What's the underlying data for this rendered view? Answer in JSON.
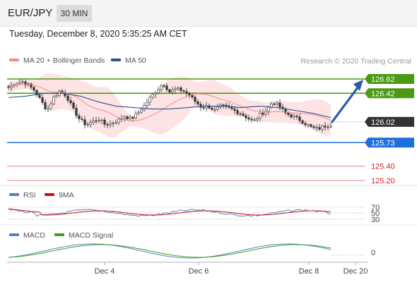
{
  "header": {
    "symbol": "EUR/JPY",
    "timeframe": "30 MIN"
  },
  "timestamp": "Tuesday, December 8, 2020 5:35:25 AM CET",
  "legend": {
    "main": [
      {
        "label": "MA 20 + Bollinger Bands",
        "color": "#f08c8c"
      },
      {
        "label": "MA 50",
        "color": "#2f4f8f"
      }
    ],
    "rsi": [
      {
        "label": "RSI",
        "color": "#5a7fc6"
      },
      {
        "label": "9MA",
        "color": "#cc1111"
      }
    ],
    "macd": [
      {
        "label": "MACD",
        "color": "#5a7fc6"
      },
      {
        "label": "MACD Signal",
        "color": "#3aa020"
      }
    ]
  },
  "research": "Research © 2020 Trading Central",
  "chart_data": {
    "type": "candlestick",
    "instrument": "EUR/JPY",
    "timeframe": "30 MIN",
    "ylim": [
      125.05,
      126.75
    ],
    "levels": [
      {
        "value": "126.62",
        "kind": "resistance",
        "color": "#4a9a14"
      },
      {
        "value": "126.42",
        "kind": "resistance",
        "color": "#4a9a14"
      },
      {
        "value": "126.02",
        "kind": "current",
        "color": "#333333"
      },
      {
        "value": "125.73",
        "kind": "support",
        "color": "#1e6fd9"
      },
      {
        "value": "125.40",
        "kind": "support",
        "color": "#cc2222"
      },
      {
        "value": "125.20",
        "kind": "support",
        "color": "#cc2222"
      }
    ],
    "close_path": [
      126.5,
      126.56,
      126.59,
      126.54,
      126.46,
      126.32,
      126.18,
      126.36,
      126.46,
      126.38,
      126.2,
      126.06,
      125.98,
      126.02,
      126.06,
      125.98,
      126.0,
      126.04,
      126.1,
      126.06,
      126.14,
      126.24,
      126.36,
      126.46,
      126.56,
      126.44,
      126.48,
      126.46,
      126.4,
      126.3,
      126.22,
      126.24,
      126.18,
      126.24,
      126.22,
      126.18,
      126.14,
      126.08,
      126.02,
      126.12,
      126.18,
      126.3,
      126.24,
      126.14,
      126.1,
      126.06,
      126.0,
      125.94,
      125.92,
      125.96,
      125.98
    ],
    "ma50": [
      126.36,
      126.38,
      126.42,
      126.42,
      126.38,
      126.3,
      126.24,
      126.22,
      126.2,
      126.2,
      126.22,
      126.24,
      126.24,
      126.22,
      126.24,
      126.22,
      126.18,
      126.14,
      126.08
    ],
    "x_labels": [
      "Dec 4",
      "Dec 6",
      "Dec 8",
      "Dec 20"
    ],
    "rsi_levels": [
      "70",
      "50",
      "30"
    ],
    "macd_level": "0",
    "forecast_arrow": {
      "from": "126.02",
      "to": "126.62",
      "direction": "up"
    }
  }
}
